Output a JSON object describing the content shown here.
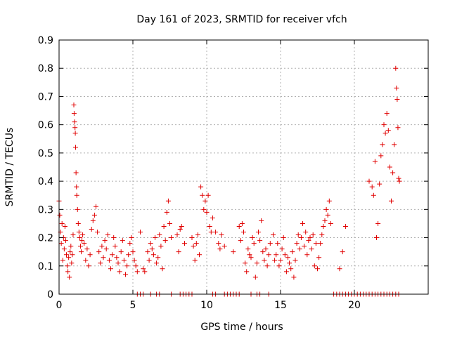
{
  "chart_data": {
    "type": "scatter",
    "title": "Day 161 of 2023, SRMTID for receiver vfch",
    "xlabel": "GPS time / hours",
    "ylabel": "SRMTID / TECUs",
    "xlim": [
      0,
      25
    ],
    "ylim": [
      0,
      0.9
    ],
    "xticks": [
      0,
      5,
      10,
      15,
      20
    ],
    "yticks": [
      0,
      0.1,
      0.2,
      0.3,
      0.4,
      0.5,
      0.6,
      0.7,
      0.8,
      0.9
    ],
    "xtick_labels": [
      "0",
      "5",
      "10",
      "15",
      "20"
    ],
    "ytick_labels": [
      "0",
      "0.1",
      "0.2",
      "0.3",
      "0.4",
      "0.5",
      "0.6",
      "0.7",
      "0.8",
      "0.9"
    ],
    "grid": true,
    "marker": "+",
    "color": "#e00000",
    "series": [
      {
        "name": "vfch",
        "points": [
          [
            0.0,
            0.33
          ],
          [
            0.05,
            0.28
          ],
          [
            0.1,
            0.22
          ],
          [
            0.15,
            0.18
          ],
          [
            0.2,
            0.25
          ],
          [
            0.25,
            0.12
          ],
          [
            0.3,
            0.2
          ],
          [
            0.35,
            0.16
          ],
          [
            0.4,
            0.24
          ],
          [
            0.45,
            0.19
          ],
          [
            0.5,
            0.14
          ],
          [
            0.55,
            0.1
          ],
          [
            0.6,
            0.08
          ],
          [
            0.65,
            0.13
          ],
          [
            0.7,
            0.06
          ],
          [
            0.75,
            0.15
          ],
          [
            0.8,
            0.17
          ],
          [
            0.85,
            0.11
          ],
          [
            0.9,
            0.14
          ],
          [
            0.95,
            0.21
          ],
          [
            1.0,
            0.67
          ],
          [
            1.02,
            0.64
          ],
          [
            1.05,
            0.61
          ],
          [
            1.08,
            0.59
          ],
          [
            1.1,
            0.57
          ],
          [
            1.12,
            0.52
          ],
          [
            1.15,
            0.43
          ],
          [
            1.18,
            0.38
          ],
          [
            1.2,
            0.35
          ],
          [
            1.25,
            0.3
          ],
          [
            1.3,
            0.25
          ],
          [
            1.35,
            0.22
          ],
          [
            1.4,
            0.2
          ],
          [
            1.45,
            0.17
          ],
          [
            1.5,
            0.15
          ],
          [
            1.55,
            0.19
          ],
          [
            1.6,
            0.21
          ],
          [
            1.7,
            0.18
          ],
          [
            1.8,
            0.12
          ],
          [
            1.9,
            0.16
          ],
          [
            2.0,
            0.1
          ],
          [
            2.1,
            0.14
          ],
          [
            2.2,
            0.23
          ],
          [
            2.3,
            0.26
          ],
          [
            2.4,
            0.28
          ],
          [
            2.5,
            0.31
          ],
          [
            2.6,
            0.22
          ],
          [
            2.7,
            0.15
          ],
          [
            2.8,
            0.11
          ],
          [
            2.9,
            0.17
          ],
          [
            3.0,
            0.13
          ],
          [
            3.1,
            0.19
          ],
          [
            3.2,
            0.16
          ],
          [
            3.3,
            0.21
          ],
          [
            3.4,
            0.12
          ],
          [
            3.5,
            0.09
          ],
          [
            3.6,
            0.14
          ],
          [
            3.7,
            0.2
          ],
          [
            3.8,
            0.17
          ],
          [
            3.9,
            0.13
          ],
          [
            4.0,
            0.11
          ],
          [
            4.1,
            0.08
          ],
          [
            4.2,
            0.15
          ],
          [
            4.3,
            0.19
          ],
          [
            4.4,
            0.12
          ],
          [
            4.5,
            0.07
          ],
          [
            4.6,
            0.1
          ],
          [
            4.7,
            0.14
          ],
          [
            4.8,
            0.18
          ],
          [
            4.9,
            0.2
          ],
          [
            5.0,
            0.15
          ],
          [
            5.1,
            0.12
          ],
          [
            5.2,
            0.1
          ],
          [
            5.3,
            0.08
          ],
          [
            5.5,
            0.22
          ],
          [
            5.7,
            0.09
          ],
          [
            5.8,
            0.08
          ],
          [
            6.0,
            0.15
          ],
          [
            6.1,
            0.12
          ],
          [
            6.2,
            0.18
          ],
          [
            6.3,
            0.16
          ],
          [
            6.4,
            0.14
          ],
          [
            6.5,
            0.2
          ],
          [
            6.6,
            0.11
          ],
          [
            6.7,
            0.13
          ],
          [
            6.8,
            0.21
          ],
          [
            6.9,
            0.17
          ],
          [
            7.0,
            0.09
          ],
          [
            7.1,
            0.24
          ],
          [
            7.2,
            0.19
          ],
          [
            7.3,
            0.29
          ],
          [
            7.4,
            0.33
          ],
          [
            7.5,
            0.25
          ],
          [
            7.6,
            0.2
          ],
          [
            8.0,
            0.21
          ],
          [
            8.1,
            0.15
          ],
          [
            8.2,
            0.23
          ],
          [
            8.3,
            0.24
          ],
          [
            8.5,
            0.18
          ],
          [
            9.0,
            0.2
          ],
          [
            9.1,
            0.17
          ],
          [
            9.2,
            0.12
          ],
          [
            9.3,
            0.18
          ],
          [
            9.4,
            0.21
          ],
          [
            9.5,
            0.14
          ],
          [
            9.6,
            0.38
          ],
          [
            9.7,
            0.35
          ],
          [
            9.8,
            0.3
          ],
          [
            9.9,
            0.33
          ],
          [
            10.0,
            0.29
          ],
          [
            10.1,
            0.35
          ],
          [
            10.2,
            0.24
          ],
          [
            10.3,
            0.22
          ],
          [
            10.4,
            0.27
          ],
          [
            10.6,
            0.22
          ],
          [
            10.8,
            0.18
          ],
          [
            10.9,
            0.16
          ],
          [
            11.0,
            0.21
          ],
          [
            11.2,
            0.17
          ],
          [
            11.8,
            0.15
          ],
          [
            12.2,
            0.24
          ],
          [
            12.3,
            0.19
          ],
          [
            12.4,
            0.25
          ],
          [
            12.5,
            0.22
          ],
          [
            12.6,
            0.11
          ],
          [
            12.7,
            0.08
          ],
          [
            12.8,
            0.16
          ],
          [
            12.9,
            0.14
          ],
          [
            13.0,
            0.13
          ],
          [
            13.1,
            0.2
          ],
          [
            13.2,
            0.18
          ],
          [
            13.3,
            0.06
          ],
          [
            13.4,
            0.11
          ],
          [
            13.5,
            0.22
          ],
          [
            13.6,
            0.19
          ],
          [
            13.7,
            0.26
          ],
          [
            13.8,
            0.15
          ],
          [
            13.9,
            0.12
          ],
          [
            14.0,
            0.16
          ],
          [
            14.1,
            0.1
          ],
          [
            14.2,
            0.14
          ],
          [
            14.3,
            0.18
          ],
          [
            14.5,
            0.21
          ],
          [
            14.6,
            0.12
          ],
          [
            14.7,
            0.14
          ],
          [
            14.8,
            0.18
          ],
          [
            14.9,
            0.1
          ],
          [
            15.0,
            0.12
          ],
          [
            15.1,
            0.16
          ],
          [
            15.2,
            0.2
          ],
          [
            15.3,
            0.14
          ],
          [
            15.4,
            0.08
          ],
          [
            15.5,
            0.13
          ],
          [
            15.6,
            0.11
          ],
          [
            15.7,
            0.09
          ],
          [
            15.8,
            0.15
          ],
          [
            15.9,
            0.06
          ],
          [
            16.0,
            0.12
          ],
          [
            16.1,
            0.18
          ],
          [
            16.2,
            0.21
          ],
          [
            16.3,
            0.16
          ],
          [
            16.4,
            0.2
          ],
          [
            16.5,
            0.25
          ],
          [
            16.6,
            0.17
          ],
          [
            16.7,
            0.22
          ],
          [
            16.8,
            0.14
          ],
          [
            16.9,
            0.19
          ],
          [
            17.0,
            0.2
          ],
          [
            17.1,
            0.16
          ],
          [
            17.2,
            0.21
          ],
          [
            17.3,
            0.1
          ],
          [
            17.4,
            0.18
          ],
          [
            17.5,
            0.09
          ],
          [
            17.6,
            0.13
          ],
          [
            17.7,
            0.18
          ],
          [
            17.8,
            0.21
          ],
          [
            17.9,
            0.24
          ],
          [
            18.0,
            0.26
          ],
          [
            18.1,
            0.3
          ],
          [
            18.2,
            0.28
          ],
          [
            18.3,
            0.33
          ],
          [
            18.4,
            0.25
          ],
          [
            19.0,
            0.09
          ],
          [
            19.2,
            0.15
          ],
          [
            19.4,
            0.24
          ],
          [
            21.0,
            0.4
          ],
          [
            21.2,
            0.38
          ],
          [
            21.3,
            0.35
          ],
          [
            21.4,
            0.47
          ],
          [
            21.5,
            0.2
          ],
          [
            21.6,
            0.25
          ],
          [
            21.7,
            0.39
          ],
          [
            21.8,
            0.49
          ],
          [
            21.9,
            0.53
          ],
          [
            22.0,
            0.6
          ],
          [
            22.1,
            0.57
          ],
          [
            22.2,
            0.64
          ],
          [
            22.3,
            0.58
          ],
          [
            22.4,
            0.45
          ],
          [
            22.5,
            0.33
          ],
          [
            22.6,
            0.43
          ],
          [
            22.7,
            0.53
          ],
          [
            22.8,
            0.8
          ],
          [
            22.85,
            0.73
          ],
          [
            22.9,
            0.69
          ],
          [
            22.95,
            0.59
          ],
          [
            23.0,
            0.41
          ],
          [
            23.05,
            0.4
          ],
          [
            5.3,
            0.0
          ],
          [
            5.5,
            0.0
          ],
          [
            5.7,
            0.0
          ],
          [
            6.2,
            0.0
          ],
          [
            6.6,
            0.0
          ],
          [
            6.8,
            0.0
          ],
          [
            7.6,
            0.0
          ],
          [
            8.2,
            0.0
          ],
          [
            8.4,
            0.0
          ],
          [
            8.6,
            0.0
          ],
          [
            8.8,
            0.0
          ],
          [
            9.0,
            0.0
          ],
          [
            10.4,
            0.0
          ],
          [
            10.6,
            0.0
          ],
          [
            11.2,
            0.0
          ],
          [
            11.4,
            0.0
          ],
          [
            11.6,
            0.0
          ],
          [
            11.8,
            0.0
          ],
          [
            12.0,
            0.0
          ],
          [
            12.2,
            0.0
          ],
          [
            13.0,
            0.0
          ],
          [
            13.4,
            0.0
          ],
          [
            13.6,
            0.0
          ],
          [
            14.2,
            0.0
          ],
          [
            18.6,
            0.0
          ],
          [
            18.8,
            0.0
          ],
          [
            19.0,
            0.0
          ],
          [
            19.2,
            0.0
          ],
          [
            19.4,
            0.0
          ],
          [
            19.6,
            0.0
          ],
          [
            19.8,
            0.0
          ],
          [
            20.0,
            0.0
          ],
          [
            20.2,
            0.0
          ],
          [
            20.4,
            0.0
          ],
          [
            20.6,
            0.0
          ],
          [
            20.8,
            0.0
          ],
          [
            21.0,
            0.0
          ],
          [
            21.2,
            0.0
          ],
          [
            21.4,
            0.0
          ],
          [
            21.6,
            0.0
          ],
          [
            21.8,
            0.0
          ],
          [
            22.0,
            0.0
          ],
          [
            22.2,
            0.0
          ],
          [
            22.4,
            0.0
          ],
          [
            22.6,
            0.0
          ],
          [
            22.8,
            0.0
          ],
          [
            23.0,
            0.0
          ]
        ]
      }
    ]
  }
}
